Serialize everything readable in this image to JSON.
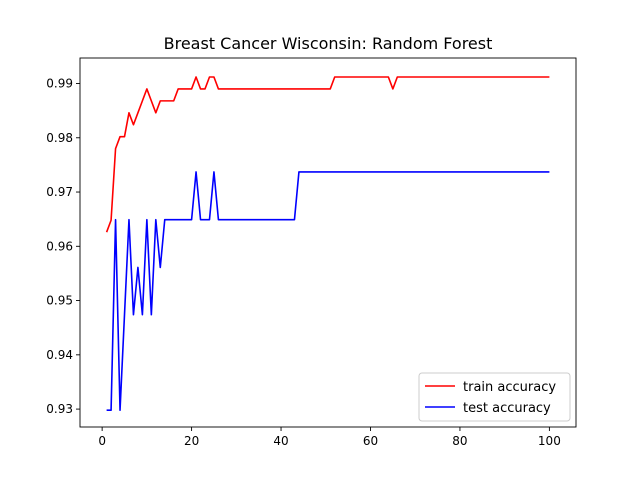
{
  "chart_data": {
    "type": "line",
    "title": "Breast Cancer Wisconsin: Random Forest",
    "xlabel": "",
    "ylabel": "",
    "xlim": [
      -4.95,
      105.95
    ],
    "ylim": [
      0.9267,
      0.9947
    ],
    "xticks": [
      0,
      20,
      40,
      60,
      80,
      100
    ],
    "yticks": [
      0.93,
      0.94,
      0.95,
      0.96,
      0.97,
      0.98,
      0.99
    ],
    "ytick_labels": [
      "0.93",
      "0.94",
      "0.95",
      "0.96",
      "0.97",
      "0.98",
      "0.99"
    ],
    "grid": false,
    "legend_position": "lower-right",
    "series": [
      {
        "name": "train accuracy",
        "color": "#ff0000",
        "points": [
          [
            1,
            0.9626
          ],
          [
            2,
            0.9648
          ],
          [
            3,
            0.978
          ],
          [
            4,
            0.9802
          ],
          [
            5,
            0.9802
          ],
          [
            6,
            0.9846
          ],
          [
            7,
            0.9824
          ],
          [
            8,
            0.9846
          ],
          [
            9,
            0.9868
          ],
          [
            10,
            0.989
          ],
          [
            11,
            0.9868
          ],
          [
            12,
            0.9846
          ],
          [
            13,
            0.9868
          ],
          [
            14,
            0.9868
          ],
          [
            16,
            0.9868
          ],
          [
            17,
            0.989
          ],
          [
            20,
            0.989
          ],
          [
            21,
            0.9912
          ],
          [
            22,
            0.989
          ],
          [
            23,
            0.989
          ],
          [
            24,
            0.9912
          ],
          [
            25,
            0.9912
          ],
          [
            26,
            0.989
          ],
          [
            51,
            0.989
          ],
          [
            52,
            0.9912
          ],
          [
            64,
            0.9912
          ],
          [
            65,
            0.989
          ],
          [
            66,
            0.9912
          ],
          [
            100,
            0.9912
          ]
        ]
      },
      {
        "name": "test accuracy",
        "color": "#0000ff",
        "points": [
          [
            1,
            0.9298
          ],
          [
            2,
            0.9298
          ],
          [
            3,
            0.9649
          ],
          [
            4,
            0.9298
          ],
          [
            5,
            0.9474
          ],
          [
            6,
            0.9649
          ],
          [
            7,
            0.9474
          ],
          [
            8,
            0.9561
          ],
          [
            9,
            0.9474
          ],
          [
            10,
            0.9649
          ],
          [
            11,
            0.9474
          ],
          [
            12,
            0.9649
          ],
          [
            13,
            0.9561
          ],
          [
            14,
            0.9649
          ],
          [
            20,
            0.9649
          ],
          [
            21,
            0.9737
          ],
          [
            22,
            0.9649
          ],
          [
            24,
            0.9649
          ],
          [
            25,
            0.9737
          ],
          [
            26,
            0.9649
          ],
          [
            43,
            0.9649
          ],
          [
            44,
            0.9737
          ],
          [
            100,
            0.9737
          ]
        ]
      }
    ]
  }
}
